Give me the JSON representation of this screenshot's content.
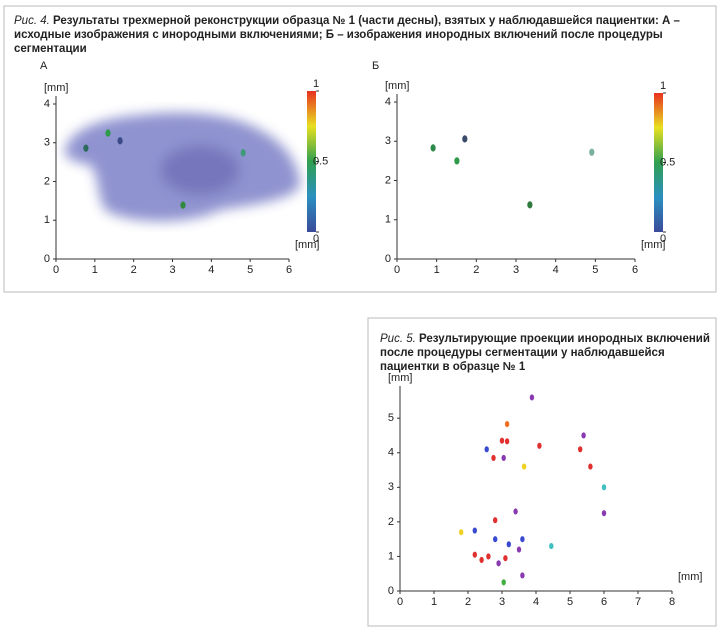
{
  "figure4": {
    "label": "Рис. 4.",
    "caption": "Результаты трехмерной реконструкции образца № 1 (части десны), взятых у наблюдавшейся пациентки: А – исходные изображения с инородными включениями; Б – изображения инородных включений после процедуры сегментации"
  },
  "figure5": {
    "label": "Рис. 5.",
    "caption": "Результирующие проекции инородных включений после процедуры сегментации у наблюдавшейся пациентки в образце № 1"
  },
  "chart_data": [
    {
      "type": "scatter",
      "panel": "А",
      "xlabel": "[mm]",
      "ylabel": "[mm]",
      "xlim": [
        0,
        6
      ],
      "ylim": [
        0,
        4
      ],
      "xticks": [
        0,
        1,
        2,
        3,
        4,
        5,
        6
      ],
      "yticks": [
        0,
        1,
        2,
        3,
        4
      ],
      "colorbar_ticks": [
        0,
        0.5,
        1
      ],
      "x": [
        0.77,
        1.34,
        1.65,
        3.27,
        4.82
      ],
      "values": [
        2.86,
        3.25,
        3.05,
        1.39,
        2.74
      ],
      "colors": [
        "#2e6a5a",
        "#2f9a4a",
        "#3a4a8a",
        "#2f8a3e",
        "#3f9a7a"
      ]
    },
    {
      "type": "scatter",
      "panel": "Б",
      "xlabel": "[mm]",
      "ylabel": "[mm]",
      "xlim": [
        0,
        6
      ],
      "ylim": [
        0,
        4
      ],
      "xticks": [
        0,
        1,
        2,
        3,
        4,
        5,
        6
      ],
      "yticks": [
        0,
        1,
        2,
        3,
        4
      ],
      "colorbar_ticks": [
        0,
        0.5,
        1
      ],
      "x": [
        0.91,
        1.51,
        1.71,
        3.35,
        4.91
      ],
      "values": [
        2.83,
        2.5,
        3.06,
        1.38,
        2.72
      ],
      "colors": [
        "#2e8a4a",
        "#2f9a4a",
        "#3a4a6a",
        "#2f7a3e",
        "#7ab0a0"
      ]
    },
    {
      "type": "scatter",
      "xlabel": "[mm]",
      "ylabel": "[mm]",
      "xlim": [
        0,
        8
      ],
      "ylim": [
        0,
        5.7
      ],
      "xticks": [
        0,
        1,
        2,
        3,
        4,
        5,
        6,
        7,
        8
      ],
      "yticks": [
        0,
        1,
        2,
        3,
        4,
        5
      ],
      "x": [
        3.15,
        3.88,
        3.0,
        3.15,
        2.55,
        2.75,
        3.05,
        3.65,
        4.1,
        5.4,
        5.3,
        5.6,
        6.0,
        6.0,
        2.8,
        3.4,
        1.8,
        2.2,
        2.8,
        3.2,
        3.5,
        3.6,
        4.45,
        2.4,
        2.2,
        2.6,
        2.9,
        3.05,
        3.6,
        3.1
      ],
      "values": [
        4.83,
        5.6,
        4.35,
        4.33,
        4.1,
        3.85,
        3.85,
        3.6,
        4.2,
        4.5,
        4.1,
        3.6,
        3.0,
        2.25,
        2.05,
        2.3,
        1.7,
        1.75,
        1.5,
        1.35,
        1.2,
        1.5,
        1.3,
        0.9,
        1.05,
        1.0,
        0.8,
        0.25,
        0.45,
        0.95
      ],
      "colors": [
        "#f07020",
        "#8a3ab0",
        "#e03030",
        "#e03030",
        "#3a4ad0",
        "#e03030",
        "#8a3ab0",
        "#f0d020",
        "#e03030",
        "#8a3ab0",
        "#e03030",
        "#e03030",
        "#40c0c0",
        "#8a3ab0",
        "#e03030",
        "#8a3ab0",
        "#f0d020",
        "#3a4ad0",
        "#3a4ad0",
        "#3a4ad0",
        "#8a3ab0",
        "#3a4ad0",
        "#40c0c0",
        "#e03030",
        "#e03030",
        "#e03030",
        "#8a3ab0",
        "#40b040",
        "#8a3ab0",
        "#e03030"
      ]
    }
  ]
}
